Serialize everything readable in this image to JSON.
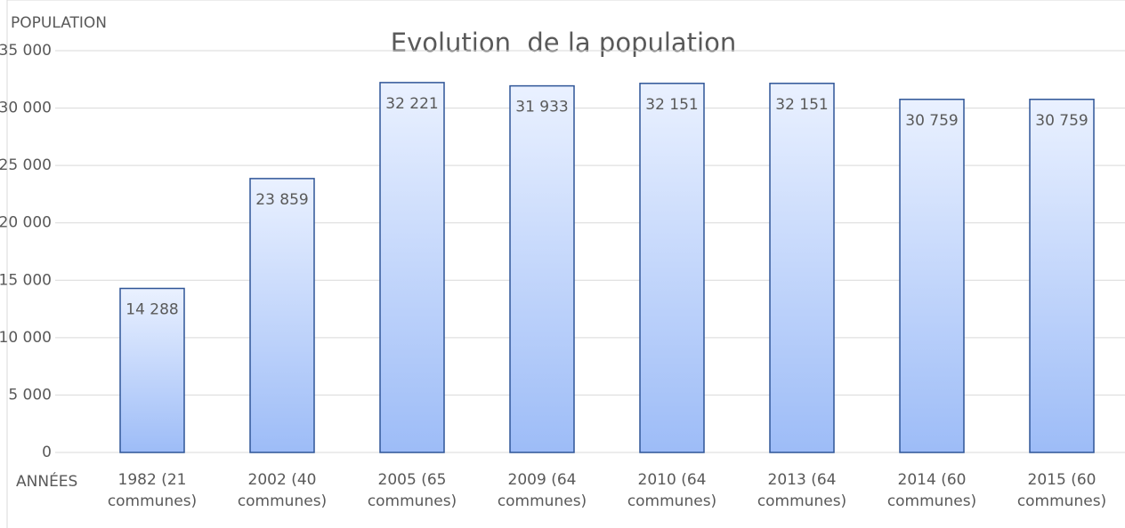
{
  "chart_data": {
    "type": "bar",
    "title": "Evolution  de la population",
    "y_label": "POPULATION",
    "x_label": "ANNÉES",
    "categories": [
      "1982 (21 communes)",
      "2002 (40 communes)",
      "2005 (65 communes)",
      "2009 (64 communes)",
      "2010 (64 communes)",
      "2013 (64 communes)",
      "2014 (60 communes)",
      "2015 (60 communes)"
    ],
    "values": [
      14288,
      23859,
      32221,
      31933,
      32151,
      32151,
      30759,
      30759
    ],
    "value_labels": [
      "14 288",
      "23 859",
      "32 221",
      "31 933",
      "32 151",
      "32 151",
      "30 759",
      "30 759"
    ],
    "color": "#9dbcf7",
    "ylim": [
      0,
      35000
    ],
    "yticks": [
      0,
      {
        "value": 5000,
        "label": "5 000"
      },
      {
        "value": 10000,
        "label": "10 000"
      },
      {
        "value": 15000,
        "label": "15 000"
      },
      {
        "value": 20000,
        "label": "20 000"
      },
      {
        "value": 25000,
        "label": "25 000"
      },
      {
        "value": 30000,
        "label": "30 000"
      },
      {
        "value": 35000,
        "label": "35 000"
      }
    ],
    "grid": true
  }
}
